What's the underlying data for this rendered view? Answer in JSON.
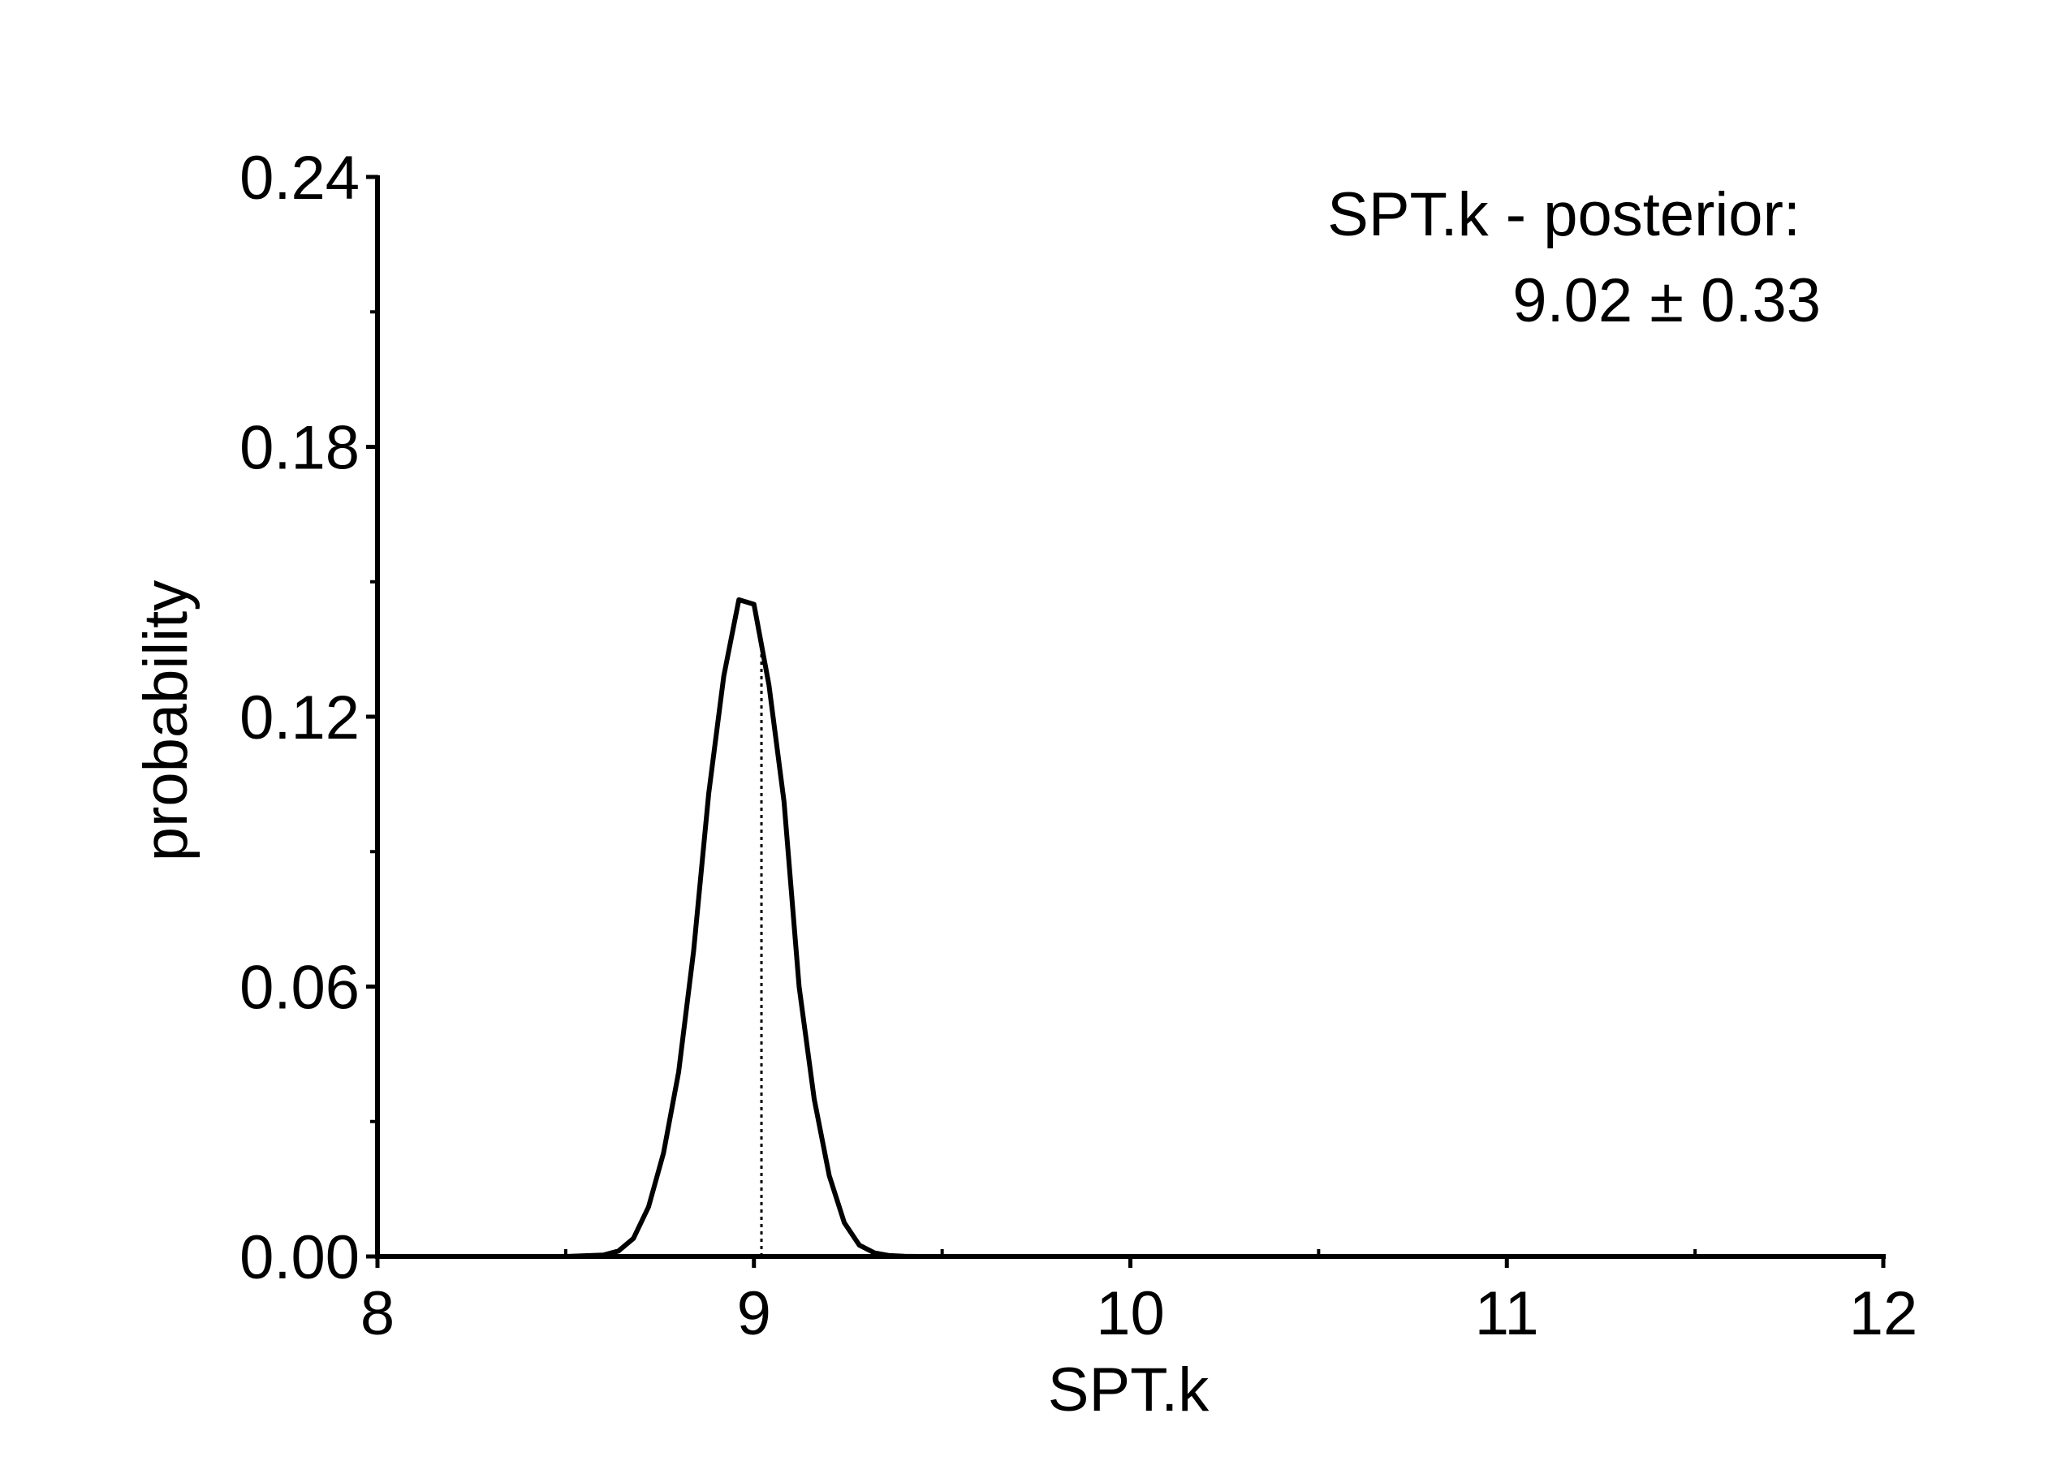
{
  "chart_data": {
    "type": "line",
    "xlabel": "SPT.k",
    "ylabel": "probability",
    "xlim": [
      8,
      12
    ],
    "ylim": [
      0,
      0.24
    ],
    "x_ticks": [
      "8",
      "9",
      "10",
      "11",
      "12"
    ],
    "y_ticks": [
      "0.00",
      "0.06",
      "0.12",
      "0.18",
      "0.24"
    ],
    "x_tick_values": [
      8,
      9,
      10,
      11,
      12
    ],
    "y_tick_values": [
      0,
      0.06,
      0.12,
      0.18,
      0.24
    ],
    "x_minor_ticks": [
      8.5,
      9.5,
      10.5,
      11.5
    ],
    "y_minor_ticks": [
      0.03,
      0.09,
      0.15,
      0.21
    ],
    "grid": false,
    "line_color": "#000000",
    "annotation": {
      "line1": "SPT.k - posterior:",
      "line2": "9.02 ± 0.33"
    },
    "mean_marker_x": 9.02,
    "series": [
      {
        "x": [
          8.0,
          8.5,
          8.6,
          8.64,
          8.68,
          8.72,
          8.76,
          8.8,
          8.84,
          8.88,
          8.92,
          8.96,
          9.0,
          9.04,
          9.08,
          9.12,
          9.16,
          9.2,
          9.24,
          9.28,
          9.32,
          9.36,
          9.4,
          9.44,
          9.5,
          12.0
        ],
        "y": [
          0.0,
          0.0,
          0.0003,
          0.0012,
          0.004,
          0.011,
          0.023,
          0.041,
          0.068,
          0.103,
          0.129,
          0.146,
          0.145,
          0.127,
          0.101,
          0.06,
          0.035,
          0.018,
          0.0075,
          0.0025,
          0.0008,
          0.0002,
          5e-05,
          0.0,
          0.0,
          0.0
        ]
      }
    ]
  }
}
